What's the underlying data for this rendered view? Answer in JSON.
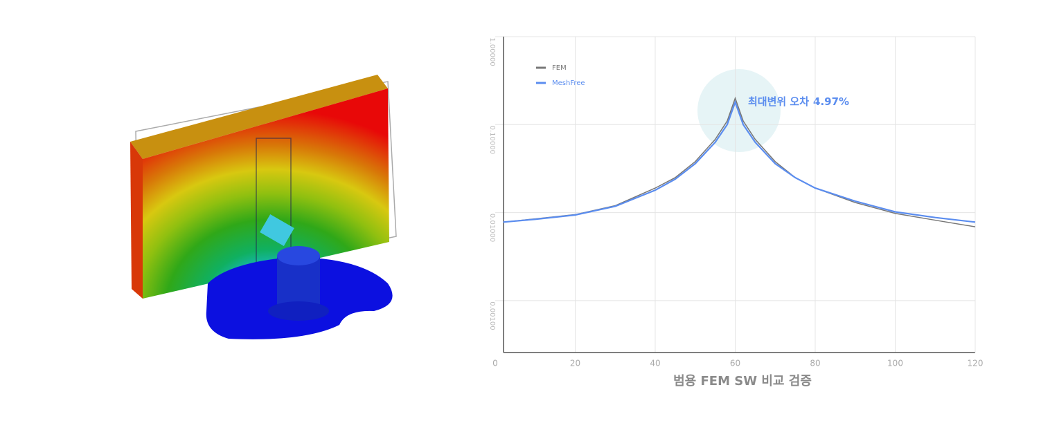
{
  "chart_data": {
    "type": "line",
    "x": [
      2,
      10,
      20,
      30,
      40,
      45,
      50,
      55,
      58,
      60,
      62,
      65,
      70,
      75,
      80,
      90,
      100,
      110,
      120
    ],
    "series": [
      {
        "name": "FEM",
        "color": "#777777",
        "values": [
          0.0078,
          0.0085,
          0.0095,
          0.012,
          0.019,
          0.025,
          0.038,
          0.068,
          0.11,
          0.2,
          0.11,
          0.068,
          0.038,
          0.025,
          0.019,
          0.013,
          0.0098,
          0.0082,
          0.0069
        ]
      },
      {
        "name": "MeshFree",
        "color": "#5b8def",
        "values": [
          0.0078,
          0.0084,
          0.0094,
          0.0118,
          0.018,
          0.024,
          0.036,
          0.063,
          0.1,
          0.18,
          0.1,
          0.063,
          0.036,
          0.025,
          0.019,
          0.0135,
          0.0102,
          0.0088,
          0.0078
        ]
      }
    ],
    "xlim": [
      0,
      120
    ],
    "xticks": [
      0,
      20,
      40,
      60,
      80,
      100,
      120
    ],
    "ylim": [
      0.000257,
      1
    ],
    "yticks": [
      {
        "value": 0.001,
        "label": "0.00100"
      },
      {
        "value": 0.01,
        "label": "0.01000"
      },
      {
        "value": 0.1,
        "label": "0.10000"
      },
      {
        "value": 1,
        "label": "1.00000"
      }
    ],
    "log_y": true,
    "grid": true,
    "legend": "top-left",
    "annotation": {
      "text": "최대변위 오차",
      "value_text": "4.97%",
      "color": "#5b8def"
    },
    "x_label": "범용 FEM SW 비교 검증"
  }
}
